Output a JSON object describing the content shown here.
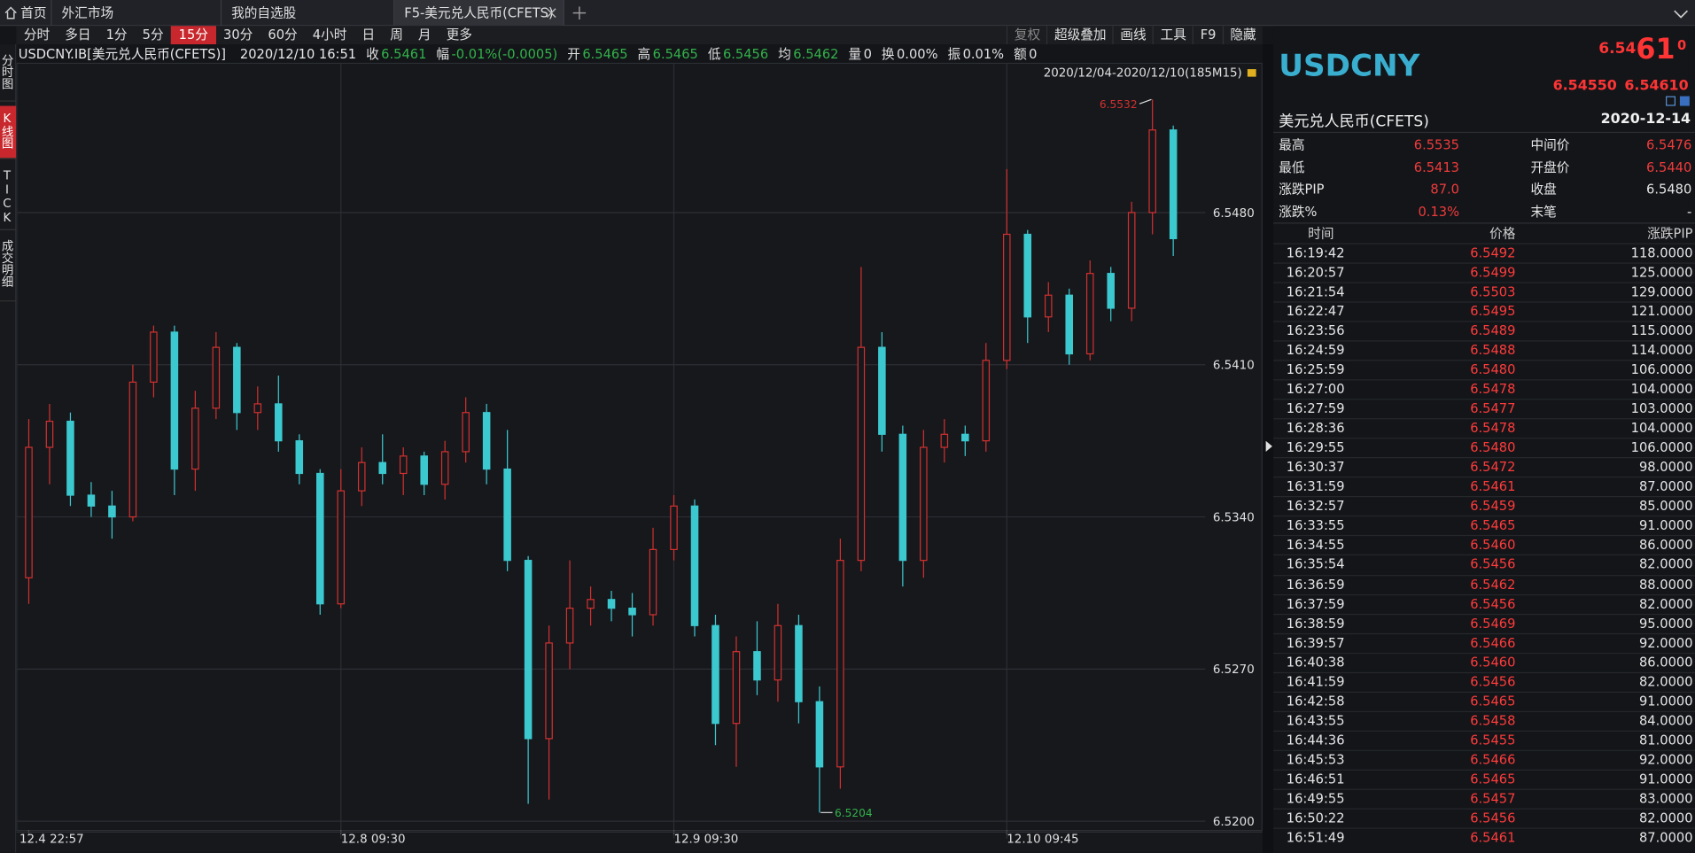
{
  "tabs": [
    "首页",
    "外汇市场",
    "我的自选股",
    "F5-美元兑人民币(CFETS)"
  ],
  "active_tab": 3,
  "periods": [
    "分时",
    "多日",
    "1分",
    "5分",
    "15分",
    "30分",
    "60分",
    "4小时",
    "日",
    "周",
    "月",
    "更多"
  ],
  "active_period": 4,
  "tools": [
    "复权",
    "超级叠加",
    "画线",
    "工具",
    "F9",
    "隐藏"
  ],
  "side_tabs": [
    "分时图",
    "K线图",
    "TICK",
    "成交明细"
  ],
  "active_side_tab": 1,
  "info": {
    "symbol": "USDCNY.IB[美元兑人民币(CFETS)]",
    "datetime": "2020/12/10 16:51",
    "items": [
      {
        "label": "收",
        "value": "6.5461",
        "color": "#33b24a"
      },
      {
        "label": "幅",
        "value": "-0.01%(-0.0005)",
        "color": "#33b24a"
      },
      {
        "label": "开",
        "value": "6.5465",
        "color": "#33b24a"
      },
      {
        "label": "高",
        "value": "6.5465",
        "color": "#33b24a"
      },
      {
        "label": "低",
        "value": "6.5456",
        "color": "#33b24a"
      },
      {
        "label": "均",
        "value": "6.5462",
        "color": "#33b24a"
      },
      {
        "label": "量",
        "value": "0",
        "color": "#e0e0e0"
      },
      {
        "label": "换",
        "value": "0.00%",
        "color": "#e0e0e0"
      },
      {
        "label": "振",
        "value": "0.01%",
        "color": "#e0e0e0"
      },
      {
        "label": "额",
        "value": "0",
        "color": "#e0e0e0"
      }
    ]
  },
  "range_label": "2020/12/04-2020/12/10(185M15)",
  "chart": {
    "type": "candlestick",
    "up_color": "#d2302f",
    "down_color": "#3cc8cf",
    "grid": true,
    "categories": [
      "12.4 22:57",
      null,
      null,
      null,
      null,
      null,
      null,
      null,
      null,
      null,
      null,
      null,
      null,
      null,
      null,
      "12.8 09:30",
      null,
      null,
      null,
      null,
      null,
      null,
      null,
      null,
      null,
      null,
      null,
      null,
      null,
      null,
      null,
      "12.9 09:30",
      null,
      null,
      null,
      null,
      null,
      null,
      null,
      null,
      null,
      null,
      null,
      null,
      null,
      null,
      null,
      "12.10 09:45",
      null,
      null,
      null,
      null,
      null,
      null,
      null,
      null
    ],
    "ohlc": [
      [
        6.5312,
        6.5385,
        6.53,
        6.5372
      ],
      [
        6.5372,
        6.5392,
        6.5355,
        6.5384
      ],
      [
        6.5384,
        6.5388,
        6.5345,
        6.535
      ],
      [
        6.535,
        6.5356,
        6.534,
        6.5345
      ],
      [
        6.5345,
        6.5352,
        6.533,
        6.534
      ],
      [
        6.534,
        6.541,
        6.5338,
        6.5402
      ],
      [
        6.5402,
        6.5428,
        6.5395,
        6.5425
      ],
      [
        6.5425,
        6.5428,
        6.535,
        6.5362
      ],
      [
        6.5362,
        6.5398,
        6.5352,
        6.539
      ],
      [
        6.539,
        6.5425,
        6.5385,
        6.5418
      ],
      [
        6.5418,
        6.542,
        6.538,
        6.5388
      ],
      [
        6.5388,
        6.54,
        6.538,
        6.5392
      ],
      [
        6.5392,
        6.5405,
        6.537,
        6.5375
      ],
      [
        6.5375,
        6.5378,
        6.5355,
        6.536
      ],
      [
        6.536,
        6.5362,
        6.5295,
        6.53
      ],
      [
        6.53,
        6.5362,
        6.5298,
        6.5352
      ],
      [
        6.5352,
        6.5372,
        6.5345,
        6.5365
      ],
      [
        6.5365,
        6.5378,
        6.5355,
        6.536
      ],
      [
        6.536,
        6.5372,
        6.535,
        6.5368
      ],
      [
        6.5368,
        6.537,
        6.535,
        6.5355
      ],
      [
        6.5355,
        6.5375,
        6.5348,
        6.537
      ],
      [
        6.537,
        6.5395,
        6.5365,
        6.5388
      ],
      [
        6.5388,
        6.5392,
        6.5355,
        6.5362
      ],
      [
        6.5362,
        6.538,
        6.5315,
        6.532
      ],
      [
        6.532,
        6.5322,
        6.5208,
        6.5238
      ],
      [
        6.5238,
        6.529,
        6.521,
        6.5282
      ],
      [
        6.5282,
        6.532,
        6.527,
        6.5298
      ],
      [
        6.5298,
        6.5308,
        6.529,
        6.5302
      ],
      [
        6.5302,
        6.5306,
        6.5292,
        6.5298
      ],
      [
        6.5298,
        6.5305,
        6.5285,
        6.5295
      ],
      [
        6.5295,
        6.5335,
        6.529,
        6.5325
      ],
      [
        6.5325,
        6.535,
        6.532,
        6.5345
      ],
      [
        6.5345,
        6.5348,
        6.5285,
        6.529
      ],
      [
        6.529,
        6.5295,
        6.5235,
        6.5245
      ],
      [
        6.5245,
        6.5285,
        6.5225,
        6.5278
      ],
      [
        6.5278,
        6.5292,
        6.5258,
        6.5265
      ],
      [
        6.5265,
        6.53,
        6.5255,
        6.529
      ],
      [
        6.529,
        6.5295,
        6.5245,
        6.5255
      ],
      [
        6.5255,
        6.5262,
        6.5204,
        6.5225
      ],
      [
        6.5225,
        6.533,
        6.5215,
        6.532
      ],
      [
        6.532,
        6.5455,
        6.5315,
        6.5418
      ],
      [
        6.5418,
        6.5425,
        6.537,
        6.5378
      ],
      [
        6.5378,
        6.5382,
        6.5308,
        6.532
      ],
      [
        6.532,
        6.538,
        6.5312,
        6.5372
      ],
      [
        6.5372,
        6.5385,
        6.5365,
        6.5378
      ],
      [
        6.5378,
        6.5382,
        6.5368,
        6.5375
      ],
      [
        6.5375,
        6.542,
        6.537,
        6.5412
      ],
      [
        6.5412,
        6.55,
        6.5408,
        6.547
      ],
      [
        6.547,
        6.5472,
        6.542,
        6.5432
      ],
      [
        6.5432,
        6.5448,
        6.5425,
        6.5442
      ],
      [
        6.5442,
        6.5445,
        6.541,
        6.5415
      ],
      [
        6.5415,
        6.5458,
        6.5412,
        6.5452
      ],
      [
        6.5452,
        6.5455,
        6.543,
        6.5436
      ],
      [
        6.5436,
        6.5485,
        6.543,
        6.548
      ],
      [
        6.548,
        6.5532,
        6.547,
        6.5518
      ],
      [
        6.5518,
        6.552,
        6.546,
        6.5468
      ]
    ],
    "ylim": [
      6.5196,
      6.554
    ],
    "yticks": [
      {
        "value": 6.52,
        "label": "6.5200"
      },
      {
        "value": 6.527,
        "label": "6.5270"
      },
      {
        "value": 6.534,
        "label": "6.5340"
      },
      {
        "value": 6.541,
        "label": "6.5410"
      },
      {
        "value": 6.548,
        "label": "6.5480"
      }
    ],
    "high": 6.5532,
    "low": 6.5204
  },
  "quote": {
    "code": "USDCNY",
    "price_parts": [
      "6.54",
      "61",
      "0"
    ],
    "bid": "6.54550",
    "ask": "6.54610",
    "name": "美元兑人民币(CFETS)",
    "date": "2020-12-14",
    "stats": [
      {
        "label": "最高",
        "value": "6.5535",
        "color": "#f03b3b"
      },
      {
        "label": "中间价",
        "value": "6.5476",
        "color": "#f03b3b"
      },
      {
        "label": "最低",
        "value": "6.5413",
        "color": "#f03b3b"
      },
      {
        "label": "开盘价",
        "value": "6.5440",
        "color": "#f03b3b"
      },
      {
        "label": "涨跌PIP",
        "value": "87.0",
        "color": "#f03b3b"
      },
      {
        "label": "收盘",
        "value": "6.5480",
        "color": "#e6e6e6"
      },
      {
        "label": "涨跌%",
        "value": "0.13%",
        "color": "#f03b3b"
      },
      {
        "label": "末笔",
        "value": "-",
        "color": "#e6e6e6"
      }
    ]
  },
  "trades": {
    "columns": [
      "时间",
      "价格",
      "涨跌PIP"
    ],
    "rows": [
      [
        "16:19:42",
        "6.5492",
        "118.0000"
      ],
      [
        "16:20:57",
        "6.5499",
        "125.0000"
      ],
      [
        "16:21:54",
        "6.5503",
        "129.0000"
      ],
      [
        "16:22:47",
        "6.5495",
        "121.0000"
      ],
      [
        "16:23:56",
        "6.5489",
        "115.0000"
      ],
      [
        "16:24:59",
        "6.5488",
        "114.0000"
      ],
      [
        "16:25:59",
        "6.5480",
        "106.0000"
      ],
      [
        "16:27:00",
        "6.5478",
        "104.0000"
      ],
      [
        "16:27:59",
        "6.5477",
        "103.0000"
      ],
      [
        "16:28:36",
        "6.5478",
        "104.0000"
      ],
      [
        "16:29:55",
        "6.5480",
        "106.0000"
      ],
      [
        "16:30:37",
        "6.5472",
        "98.0000"
      ],
      [
        "16:31:59",
        "6.5461",
        "87.0000"
      ],
      [
        "16:32:57",
        "6.5459",
        "85.0000"
      ],
      [
        "16:33:55",
        "6.5465",
        "91.0000"
      ],
      [
        "16:34:55",
        "6.5460",
        "86.0000"
      ],
      [
        "16:35:54",
        "6.5456",
        "82.0000"
      ],
      [
        "16:36:59",
        "6.5462",
        "88.0000"
      ],
      [
        "16:37:59",
        "6.5456",
        "82.0000"
      ],
      [
        "16:38:59",
        "6.5469",
        "95.0000"
      ],
      [
        "16:39:57",
        "6.5466",
        "92.0000"
      ],
      [
        "16:40:38",
        "6.5460",
        "86.0000"
      ],
      [
        "16:41:59",
        "6.5456",
        "82.0000"
      ],
      [
        "16:42:58",
        "6.5465",
        "91.0000"
      ],
      [
        "16:43:55",
        "6.5458",
        "84.0000"
      ],
      [
        "16:44:36",
        "6.5455",
        "81.0000"
      ],
      [
        "16:45:53",
        "6.5466",
        "92.0000"
      ],
      [
        "16:46:51",
        "6.5465",
        "91.0000"
      ],
      [
        "16:49:55",
        "6.5457",
        "83.0000"
      ],
      [
        "16:50:22",
        "6.5456",
        "82.0000"
      ],
      [
        "16:51:49",
        "6.5461",
        "87.0000"
      ]
    ]
  }
}
